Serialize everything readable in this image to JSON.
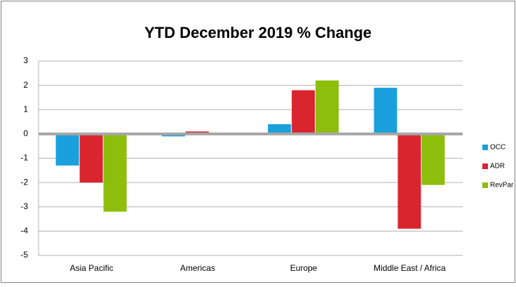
{
  "chart_data": {
    "type": "bar",
    "title": "YTD December 2019 % Change",
    "categories": [
      "Asia Pacific",
      "Americas",
      "Europe",
      "Middle East / Africa"
    ],
    "series": [
      {
        "name": "OCC",
        "color": "#1aa0dc",
        "values": [
          -1.3,
          -0.1,
          0.4,
          1.9
        ]
      },
      {
        "name": "ADR",
        "color": "#d9252e",
        "values": [
          -2.0,
          0.1,
          1.8,
          -3.9
        ]
      },
      {
        "name": "RevPar",
        "color": "#8cbe0b",
        "values": [
          -3.2,
          0,
          2.2,
          -2.1
        ]
      }
    ],
    "ylim": [
      -5,
      3
    ],
    "yticks": [
      -5,
      -4,
      -3,
      -2,
      -1,
      0,
      1,
      2,
      3
    ],
    "grid": true,
    "legend": "right"
  }
}
